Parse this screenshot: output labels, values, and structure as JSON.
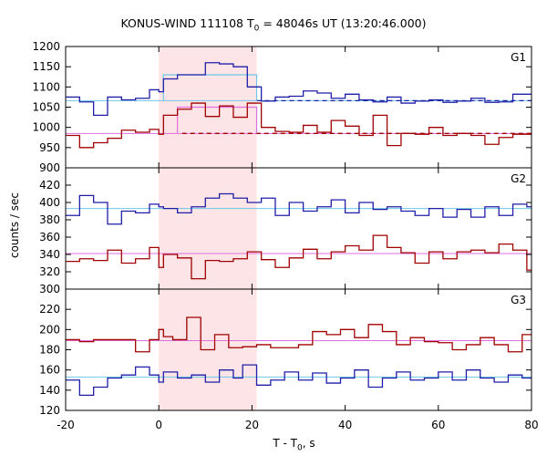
{
  "chart_data": {
    "type": "line",
    "title_main": "KONUS-WIND 111108 T",
    "title_sub": "0",
    "title_rest": " = 48046s UT (13:20:46.000)",
    "ylabel": "counts / sec",
    "xlabel_main": "T - T",
    "xlabel_sub": "0",
    "xlabel_rest": ", s",
    "xlim": [
      -20,
      80
    ],
    "xticks": [
      -20,
      0,
      20,
      40,
      60,
      80
    ],
    "highlight_interval": [
      0,
      21
    ],
    "colors": {
      "blue": "#1f1fa8",
      "red": "#a00000",
      "cyan": "#6ec8e6",
      "pink": "#e070e0",
      "highlight": "#fde4e6"
    },
    "panels": [
      {
        "label": "G1",
        "ylim": [
          900,
          1200
        ],
        "yticks": [
          900,
          950,
          1000,
          1050,
          1100,
          1150,
          1200
        ],
        "series": [
          {
            "color": "blue",
            "bins": [
              [
                -20,
                1075
              ],
              [
                -17,
                1063
              ],
              [
                -14,
                1030
              ],
              [
                -11,
                1075
              ],
              [
                -8,
                1068
              ],
              [
                -5,
                1072
              ],
              [
                -2,
                1093
              ],
              [
                0,
                1088
              ],
              [
                1,
                1120
              ],
              [
                4,
                1130
              ],
              [
                7,
                1130
              ],
              [
                10,
                1160
              ],
              [
                13,
                1157
              ],
              [
                16,
                1150
              ],
              [
                19,
                1100
              ],
              [
                22,
                1065
              ],
              [
                25,
                1075
              ],
              [
                28,
                1077
              ],
              [
                31,
                1090
              ],
              [
                34,
                1085
              ],
              [
                37,
                1072
              ],
              [
                40,
                1082
              ],
              [
                43,
                1068
              ],
              [
                46,
                1063
              ],
              [
                49,
                1075
              ],
              [
                52,
                1060
              ],
              [
                55,
                1065
              ],
              [
                58,
                1068
              ],
              [
                61,
                1062
              ],
              [
                64,
                1065
              ],
              [
                67,
                1072
              ],
              [
                70,
                1062
              ],
              [
                73,
                1063
              ],
              [
                76,
                1082
              ]
            ]
          },
          {
            "color": "red",
            "bins": [
              [
                -20,
                980
              ],
              [
                -17,
                950
              ],
              [
                -14,
                962
              ],
              [
                -11,
                973
              ],
              [
                -8,
                993
              ],
              [
                -5,
                988
              ],
              [
                -2,
                995
              ],
              [
                0,
                983
              ],
              [
                1,
                1030
              ],
              [
                4,
                1045
              ],
              [
                7,
                1060
              ],
              [
                10,
                1027
              ],
              [
                13,
                1053
              ],
              [
                16,
                1025
              ],
              [
                19,
                1060
              ],
              [
                22,
                1000
              ],
              [
                25,
                990
              ],
              [
                28,
                988
              ],
              [
                31,
                1005
              ],
              [
                34,
                988
              ],
              [
                37,
                1017
              ],
              [
                40,
                1003
              ],
              [
                43,
                980
              ],
              [
                46,
                1030
              ],
              [
                49,
                955
              ],
              [
                52,
                985
              ],
              [
                55,
                983
              ],
              [
                58,
                1000
              ],
              [
                61,
                980
              ],
              [
                64,
                985
              ],
              [
                67,
                980
              ],
              [
                70,
                958
              ],
              [
                73,
                975
              ],
              [
                76,
                983
              ]
            ]
          }
        ],
        "flat_lines": [
          {
            "color": "cyan",
            "y": 1066,
            "from": -20,
            "to": 80,
            "dashed": false
          },
          {
            "color": "blue",
            "y": 1066,
            "from": 21,
            "to": 80,
            "dashed": true
          },
          {
            "color": "pink",
            "y": 985,
            "from": -20,
            "to": 80,
            "dashed": false
          },
          {
            "color": "red",
            "y": 985,
            "from": 5,
            "to": 80,
            "dashed": true
          }
        ],
        "boxes": [
          {
            "color": "cyan",
            "from": 1,
            "to": 21,
            "y": 1130,
            "base": 1066
          },
          {
            "color": "pink",
            "from": 4,
            "to": 21,
            "y": 1050,
            "base": 985
          }
        ]
      },
      {
        "label": "G2",
        "ylim": [
          300,
          440
        ],
        "yticks": [
          300,
          320,
          340,
          360,
          380,
          400,
          420
        ],
        "series": [
          {
            "color": "blue",
            "bins": [
              [
                -20,
                385
              ],
              [
                -17,
                408
              ],
              [
                -14,
                400
              ],
              [
                -11,
                375
              ],
              [
                -8,
                390
              ],
              [
                -5,
                388
              ],
              [
                -2,
                398
              ],
              [
                0,
                395
              ],
              [
                1,
                393
              ],
              [
                4,
                388
              ],
              [
                7,
                395
              ],
              [
                10,
                405
              ],
              [
                13,
                410
              ],
              [
                16,
                405
              ],
              [
                19,
                400
              ],
              [
                22,
                405
              ],
              [
                25,
                385
              ],
              [
                28,
                400
              ],
              [
                31,
                390
              ],
              [
                34,
                395
              ],
              [
                37,
                403
              ],
              [
                40,
                388
              ],
              [
                43,
                400
              ],
              [
                46,
                392
              ],
              [
                49,
                395
              ],
              [
                52,
                390
              ],
              [
                55,
                385
              ],
              [
                58,
                393
              ],
              [
                61,
                383
              ],
              [
                64,
                392
              ],
              [
                67,
                383
              ],
              [
                70,
                395
              ],
              [
                73,
                385
              ],
              [
                76,
                398
              ],
              [
                79,
                395
              ]
            ]
          },
          {
            "color": "red",
            "bins": [
              [
                -20,
                332
              ],
              [
                -17,
                335
              ],
              [
                -14,
                333
              ],
              [
                -11,
                345
              ],
              [
                -8,
                330
              ],
              [
                -5,
                335
              ],
              [
                -2,
                348
              ],
              [
                0,
                325
              ],
              [
                1,
                340
              ],
              [
                4,
                336
              ],
              [
                7,
                312
              ],
              [
                10,
                333
              ],
              [
                13,
                332
              ],
              [
                16,
                335
              ],
              [
                19,
                343
              ],
              [
                22,
                334
              ],
              [
                25,
                325
              ],
              [
                28,
                336
              ],
              [
                31,
                346
              ],
              [
                34,
                335
              ],
              [
                37,
                343
              ],
              [
                40,
                350
              ],
              [
                43,
                345
              ],
              [
                46,
                362
              ],
              [
                49,
                348
              ],
              [
                52,
                342
              ],
              [
                55,
                330
              ],
              [
                58,
                343
              ],
              [
                61,
                335
              ],
              [
                64,
                343
              ],
              [
                67,
                345
              ],
              [
                70,
                342
              ],
              [
                73,
                352
              ],
              [
                76,
                345
              ],
              [
                79,
                322
              ]
            ]
          }
        ],
        "flat_lines": [
          {
            "color": "cyan",
            "y": 393,
            "from": -20,
            "to": 80,
            "dashed": false
          },
          {
            "color": "pink",
            "y": 341,
            "from": -20,
            "to": 80,
            "dashed": false
          }
        ],
        "boxes": []
      },
      {
        "label": "G3",
        "ylim": [
          120,
          240
        ],
        "yticks": [
          120,
          140,
          160,
          180,
          200,
          220
        ],
        "series": [
          {
            "color": "red",
            "bins": [
              [
                -20,
                190
              ],
              [
                -17,
                188
              ],
              [
                -14,
                190
              ],
              [
                -11,
                190
              ],
              [
                -8,
                190
              ],
              [
                -5,
                178
              ],
              [
                -2,
                190
              ],
              [
                0,
                200
              ],
              [
                1,
                193
              ],
              [
                3,
                190
              ],
              [
                6,
                212
              ],
              [
                9,
                180
              ],
              [
                12,
                195
              ],
              [
                15,
                182
              ],
              [
                18,
                183
              ],
              [
                21,
                185
              ],
              [
                24,
                182
              ],
              [
                27,
                182
              ],
              [
                30,
                185
              ],
              [
                33,
                198
              ],
              [
                36,
                195
              ],
              [
                39,
                200
              ],
              [
                42,
                192
              ],
              [
                45,
                205
              ],
              [
                48,
                198
              ],
              [
                51,
                185
              ],
              [
                54,
                192
              ],
              [
                57,
                188
              ],
              [
                60,
                187
              ],
              [
                63,
                180
              ],
              [
                66,
                185
              ],
              [
                69,
                192
              ],
              [
                72,
                185
              ],
              [
                75,
                178
              ],
              [
                78,
                195
              ]
            ]
          },
          {
            "color": "blue",
            "bins": [
              [
                -20,
                150
              ],
              [
                -17,
                135
              ],
              [
                -14,
                143
              ],
              [
                -11,
                152
              ],
              [
                -8,
                155
              ],
              [
                -5,
                163
              ],
              [
                -2,
                155
              ],
              [
                0,
                148
              ],
              [
                1,
                158
              ],
              [
                4,
                152
              ],
              [
                7,
                155
              ],
              [
                10,
                148
              ],
              [
                13,
                160
              ],
              [
                16,
                152
              ],
              [
                18,
                165
              ],
              [
                21,
                145
              ],
              [
                24,
                150
              ],
              [
                27,
                158
              ],
              [
                30,
                150
              ],
              [
                33,
                157
              ],
              [
                36,
                147
              ],
              [
                39,
                152
              ],
              [
                42,
                160
              ],
              [
                45,
                143
              ],
              [
                48,
                152
              ],
              [
                51,
                158
              ],
              [
                54,
                150
              ],
              [
                57,
                152
              ],
              [
                60,
                158
              ],
              [
                63,
                150
              ],
              [
                66,
                160
              ],
              [
                69,
                152
              ],
              [
                72,
                148
              ],
              [
                75,
                155
              ],
              [
                78,
                152
              ]
            ]
          }
        ],
        "flat_lines": [
          {
            "color": "pink",
            "y": 189,
            "from": -20,
            "to": 80,
            "dashed": false
          },
          {
            "color": "cyan",
            "y": 153,
            "from": -20,
            "to": 80,
            "dashed": false
          }
        ],
        "boxes": []
      }
    ]
  }
}
